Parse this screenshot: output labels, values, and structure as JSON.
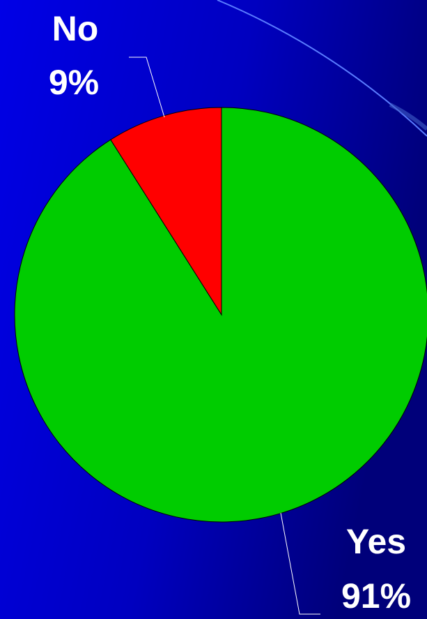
{
  "chart_data": {
    "type": "pie",
    "categories": [
      "Yes",
      "No"
    ],
    "values": [
      91,
      9
    ],
    "value_labels": [
      "91%",
      "9%"
    ],
    "colors": [
      "#00cc00",
      "#ff0000"
    ]
  }
}
